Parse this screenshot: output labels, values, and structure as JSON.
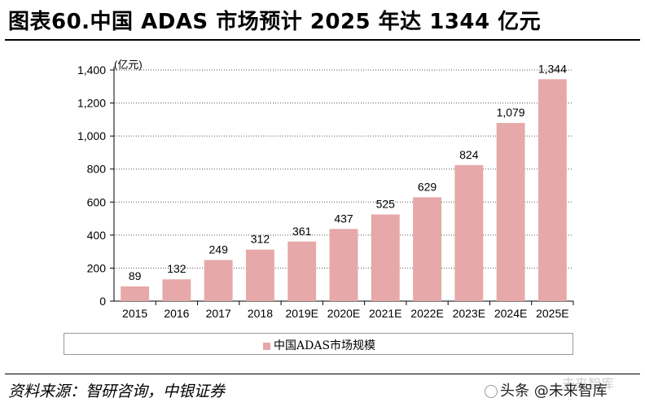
{
  "page": {
    "title": "图表60.中国 ADAS 市场预计 2025 年达 1344 亿元",
    "source": "资料来源：智研咨询，中银证券",
    "watermark": "头条 @未来智库",
    "watermark_shadow": "未来智库"
  },
  "chart_data": {
    "type": "bar",
    "unit_label": "(亿元)",
    "categories": [
      "2015",
      "2016",
      "2017",
      "2018",
      "2019E",
      "2020E",
      "2021E",
      "2022E",
      "2023E",
      "2024E",
      "2025E"
    ],
    "series": [
      {
        "name": "中国ADAS市场规模",
        "values": [
          89,
          132,
          249,
          312,
          361,
          437,
          525,
          629,
          824,
          1079,
          1344
        ],
        "data_labels": [
          "89",
          "132",
          "249",
          "312",
          "361",
          "437",
          "525",
          "629",
          "824",
          "1,079",
          "1,344"
        ],
        "color": "#e6a8a8"
      }
    ],
    "yticks": [
      0,
      200,
      400,
      600,
      800,
      1000,
      1200,
      1400
    ],
    "ytick_labels": [
      "0",
      "200",
      "400",
      "600",
      "800",
      "1,000",
      "1,200",
      "1,400"
    ],
    "ylim": [
      0,
      1400
    ],
    "grid": "horizontal-dotted",
    "legend_position": "bottom"
  }
}
